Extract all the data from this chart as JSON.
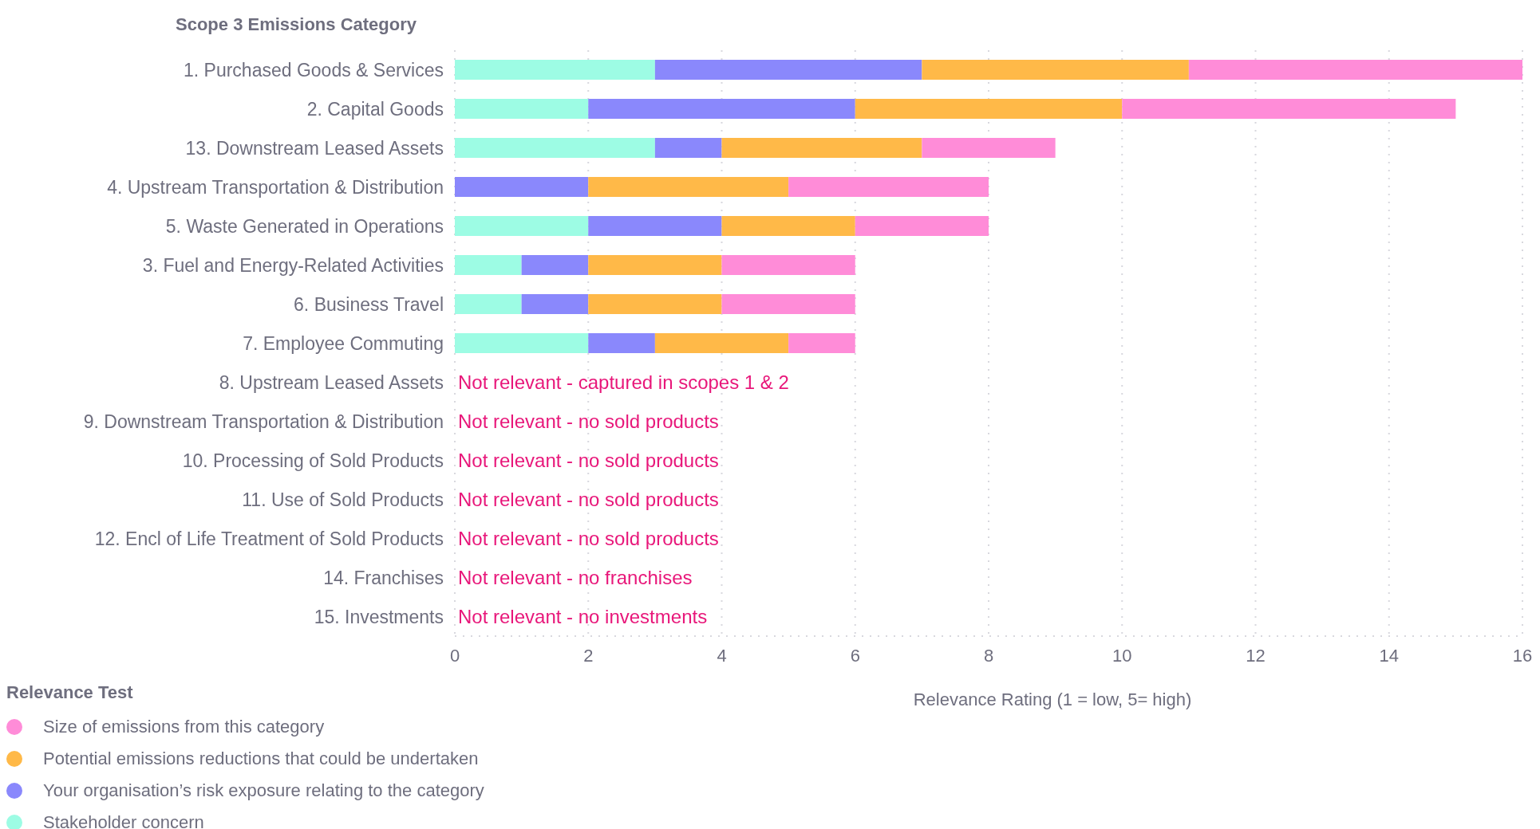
{
  "chart_data": {
    "type": "bar",
    "orientation": "horizontal",
    "stacked": true,
    "ylabel": "Scope 3 Emissions Category",
    "xlabel": "Relevance Rating (1 = low, 5= high)",
    "legend_title": "Relevance Test",
    "categories": [
      "1. Purchased Goods & Services",
      "2. Capital Goods",
      "13. Downstream Leased Assets",
      "4. Upstream Transportation & Distribution",
      "5. Waste Generated in Operations",
      "3. Fuel and Energy-Related Activities",
      "6. Business Travel",
      "7. Employee Commuting",
      "8. Upstream Leased Assets",
      "9. Downstream Transportation & Distribution",
      "10. Processing of Sold Products",
      "11. Use of Sold Products",
      "12. Encl of Life Treatment of  Sold Products",
      "14. Franchises",
      "15. Investments"
    ],
    "series": [
      {
        "name": "Stakeholder concern",
        "color": "#9dfce4",
        "values": [
          3,
          2,
          3,
          0,
          2,
          1,
          1,
          2,
          null,
          null,
          null,
          null,
          null,
          null,
          null
        ]
      },
      {
        "name": "Your organisation’s risk exposure relating to the category",
        "color": "#8a88fc",
        "values": [
          4,
          4,
          1,
          2,
          2,
          1,
          1,
          1,
          null,
          null,
          null,
          null,
          null,
          null,
          null
        ]
      },
      {
        "name": "Potential emissions reductions that could be undertaken",
        "color": "#ffb948",
        "values": [
          4,
          4,
          3,
          3,
          2,
          2,
          2,
          2,
          null,
          null,
          null,
          null,
          null,
          null,
          null
        ]
      },
      {
        "name": "Size of emissions from this category",
        "color": "#ff8cd8",
        "values": [
          5,
          5,
          2,
          3,
          2,
          2,
          2,
          1,
          null,
          null,
          null,
          null,
          null,
          null,
          null
        ]
      }
    ],
    "xlim": [
      0,
      16
    ],
    "xticks": [
      0,
      2,
      4,
      6,
      8,
      10,
      12,
      14,
      16
    ],
    "grid": "x",
    "legend": "bottom left",
    "annotations": [
      "Not relevant - captured in scopes 1 & 2",
      "Not relevant - no sold products",
      "Not relevant - no sold products",
      "Not relevant - no sold products",
      "Not relevant - no sold products",
      "Not relevant - no franchises",
      "Not relevant - no investments"
    ]
  }
}
